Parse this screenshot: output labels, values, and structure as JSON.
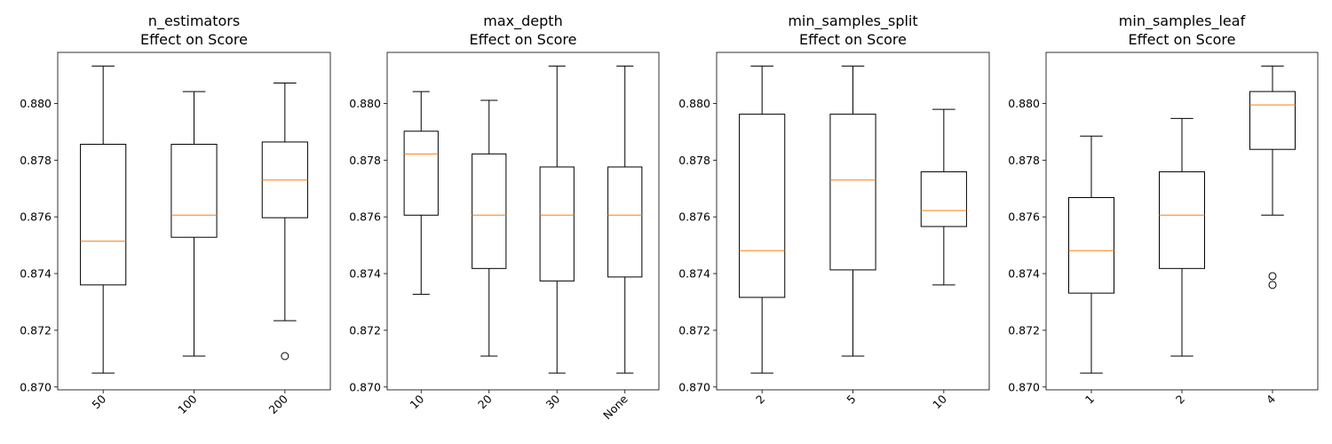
{
  "chart_data": [
    {
      "type": "box",
      "title": [
        "n_estimators",
        "Effect on Score"
      ],
      "xlabel": "",
      "ylabel": "",
      "ylim": [
        0.8699,
        0.8818
      ],
      "yticks": [
        "0.870",
        "0.872",
        "0.874",
        "0.876",
        "0.878",
        "0.880"
      ],
      "categories": [
        "50",
        "100",
        "200"
      ],
      "boxes": [
        {
          "whisker_low": 0.87049,
          "q1": 0.8736,
          "median": 0.87514,
          "q3": 0.87856,
          "whisker_high": 0.88132,
          "outliers": []
        },
        {
          "whisker_low": 0.87109,
          "q1": 0.87528,
          "median": 0.87606,
          "q3": 0.87856,
          "whisker_high": 0.88042,
          "outliers": []
        },
        {
          "whisker_low": 0.87234,
          "q1": 0.87597,
          "median": 0.8773,
          "q3": 0.87864,
          "whisker_high": 0.88072,
          "outliers": [
            0.87109
          ]
        }
      ]
    },
    {
      "type": "box",
      "title": [
        "max_depth",
        "Effect on Score"
      ],
      "xlabel": "",
      "ylabel": "",
      "ylim": [
        0.8699,
        0.8818
      ],
      "yticks": [
        "0.870",
        "0.872",
        "0.874",
        "0.876",
        "0.878",
        "0.880"
      ],
      "categories": [
        "10",
        "20",
        "30",
        "None"
      ],
      "boxes": [
        {
          "whisker_low": 0.87327,
          "q1": 0.87606,
          "median": 0.87822,
          "q3": 0.87902,
          "whisker_high": 0.88042,
          "outliers": []
        },
        {
          "whisker_low": 0.87109,
          "q1": 0.87418,
          "median": 0.87606,
          "q3": 0.87822,
          "whisker_high": 0.88011,
          "outliers": []
        },
        {
          "whisker_low": 0.87049,
          "q1": 0.87374,
          "median": 0.87606,
          "q3": 0.87776,
          "whisker_high": 0.88132,
          "outliers": []
        },
        {
          "whisker_low": 0.87049,
          "q1": 0.87388,
          "median": 0.87606,
          "q3": 0.87776,
          "whisker_high": 0.88132,
          "outliers": []
        }
      ]
    },
    {
      "type": "box",
      "title": [
        "min_samples_split",
        "Effect on Score"
      ],
      "xlabel": "",
      "ylabel": "",
      "ylim": [
        0.8699,
        0.8818
      ],
      "yticks": [
        "0.870",
        "0.872",
        "0.874",
        "0.876",
        "0.878",
        "0.880"
      ],
      "categories": [
        "2",
        "5",
        "10"
      ],
      "boxes": [
        {
          "whisker_low": 0.87049,
          "q1": 0.87316,
          "median": 0.87481,
          "q3": 0.87962,
          "whisker_high": 0.88132,
          "outliers": []
        },
        {
          "whisker_low": 0.87109,
          "q1": 0.87413,
          "median": 0.8773,
          "q3": 0.87962,
          "whisker_high": 0.88132,
          "outliers": []
        },
        {
          "whisker_low": 0.8736,
          "q1": 0.87566,
          "median": 0.87622,
          "q3": 0.87759,
          "whisker_high": 0.87979,
          "outliers": []
        }
      ]
    },
    {
      "type": "box",
      "title": [
        "min_samples_leaf",
        "Effect on Score"
      ],
      "xlabel": "",
      "ylabel": "",
      "ylim": [
        0.8699,
        0.8818
      ],
      "yticks": [
        "0.870",
        "0.872",
        "0.874",
        "0.876",
        "0.878",
        "0.880"
      ],
      "categories": [
        "1",
        "2",
        "4"
      ],
      "boxes": [
        {
          "whisker_low": 0.87049,
          "q1": 0.87331,
          "median": 0.87481,
          "q3": 0.87668,
          "whisker_high": 0.87885,
          "outliers": []
        },
        {
          "whisker_low": 0.87109,
          "q1": 0.87418,
          "median": 0.87606,
          "q3": 0.87759,
          "whisker_high": 0.87947,
          "outliers": []
        },
        {
          "whisker_low": 0.87606,
          "q1": 0.87838,
          "median": 0.87995,
          "q3": 0.88042,
          "whisker_high": 0.88132,
          "outliers": [
            0.87391,
            0.8736
          ]
        }
      ]
    }
  ]
}
